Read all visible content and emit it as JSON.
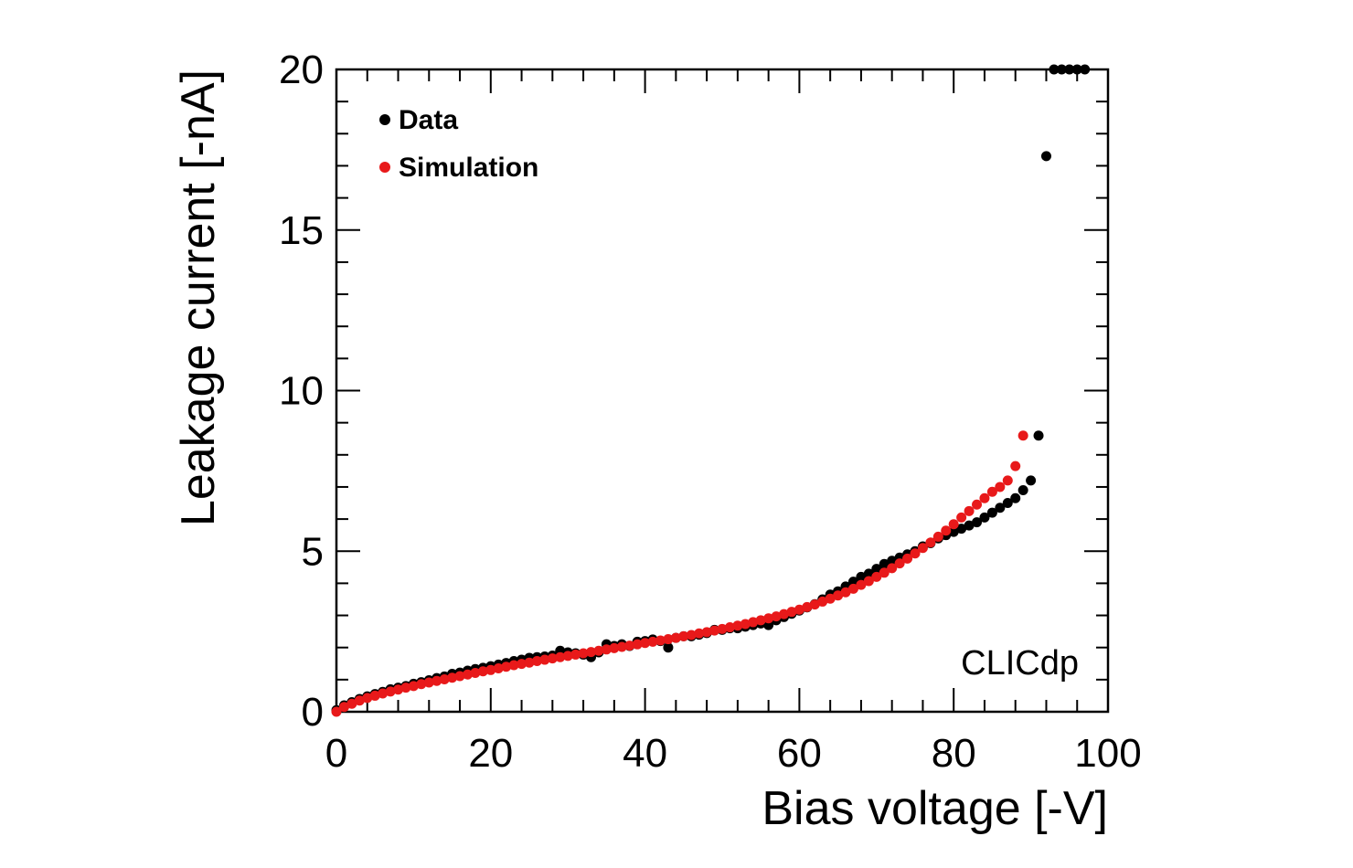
{
  "chart_data": {
    "type": "scatter",
    "title": "",
    "xlabel": "Bias voltage [-V]",
    "ylabel": "Leakage current [-nA]",
    "xlim": [
      0,
      100
    ],
    "ylim": [
      0,
      20
    ],
    "x_ticks": [
      0,
      20,
      40,
      60,
      80,
      100
    ],
    "y_ticks": [
      0,
      5,
      10,
      15,
      20
    ],
    "grid": false,
    "legend_position": "top-left",
    "annotation": "CLICdp",
    "series": [
      {
        "name": "Data",
        "color": "#000000",
        "x": [
          0,
          1,
          2,
          3,
          4,
          5,
          6,
          7,
          8,
          9,
          10,
          11,
          12,
          13,
          14,
          15,
          16,
          17,
          18,
          19,
          20,
          21,
          22,
          23,
          24,
          25,
          26,
          27,
          28,
          29,
          30,
          31,
          32,
          33,
          34,
          35,
          36,
          37,
          38,
          39,
          40,
          41,
          42,
          43,
          44,
          45,
          46,
          47,
          48,
          49,
          50,
          51,
          52,
          53,
          54,
          55,
          56,
          57,
          58,
          59,
          60,
          61,
          62,
          63,
          64,
          65,
          66,
          67,
          68,
          69,
          70,
          71,
          72,
          73,
          74,
          75,
          76,
          77,
          78,
          79,
          80,
          81,
          82,
          83,
          84,
          85,
          86,
          87,
          88,
          89,
          90,
          91,
          92,
          93,
          94,
          95,
          96,
          97
        ],
        "values": [
          0.05,
          0.2,
          0.3,
          0.4,
          0.48,
          0.55,
          0.62,
          0.7,
          0.75,
          0.8,
          0.87,
          0.92,
          0.98,
          1.05,
          1.1,
          1.18,
          1.22,
          1.28,
          1.33,
          1.37,
          1.42,
          1.47,
          1.52,
          1.58,
          1.62,
          1.68,
          1.7,
          1.72,
          1.75,
          1.9,
          1.85,
          1.82,
          1.78,
          1.7,
          1.85,
          2.1,
          2.05,
          2.1,
          2.05,
          2.18,
          2.2,
          2.25,
          2.2,
          2.0,
          2.3,
          2.35,
          2.35,
          2.4,
          2.45,
          2.55,
          2.55,
          2.6,
          2.6,
          2.65,
          2.7,
          2.75,
          2.7,
          2.85,
          2.95,
          3.05,
          3.15,
          3.25,
          3.35,
          3.5,
          3.65,
          3.75,
          3.9,
          4.05,
          4.2,
          4.3,
          4.45,
          4.6,
          4.7,
          4.8,
          4.9,
          5.0,
          5.15,
          5.25,
          5.4,
          5.5,
          5.6,
          5.7,
          5.8,
          5.9,
          6.05,
          6.2,
          6.35,
          6.5,
          6.65,
          6.9,
          7.2,
          8.6,
          17.3,
          20,
          20,
          20,
          20,
          20
        ]
      },
      {
        "name": "Simulation",
        "color": "#e8191a",
        "x": [
          0,
          1,
          2,
          3,
          4,
          5,
          6,
          7,
          8,
          9,
          10,
          11,
          12,
          13,
          14,
          15,
          16,
          17,
          18,
          19,
          20,
          21,
          22,
          23,
          24,
          25,
          26,
          27,
          28,
          29,
          30,
          31,
          32,
          33,
          34,
          35,
          36,
          37,
          38,
          39,
          40,
          41,
          42,
          43,
          44,
          45,
          46,
          47,
          48,
          49,
          50,
          51,
          52,
          53,
          54,
          55,
          56,
          57,
          58,
          59,
          60,
          61,
          62,
          63,
          64,
          65,
          66,
          67,
          68,
          69,
          70,
          71,
          72,
          73,
          74,
          75,
          76,
          77,
          78,
          79,
          80,
          81,
          82,
          83,
          84,
          85,
          86,
          87,
          88,
          89
        ],
        "values": [
          0.0,
          0.15,
          0.25,
          0.35,
          0.43,
          0.5,
          0.57,
          0.63,
          0.69,
          0.75,
          0.8,
          0.86,
          0.91,
          0.96,
          1.01,
          1.06,
          1.11,
          1.16,
          1.21,
          1.26,
          1.3,
          1.35,
          1.4,
          1.45,
          1.49,
          1.53,
          1.58,
          1.62,
          1.66,
          1.7,
          1.74,
          1.78,
          1.82,
          1.86,
          1.9,
          1.94,
          1.98,
          2.02,
          2.06,
          2.1,
          2.14,
          2.18,
          2.22,
          2.26,
          2.3,
          2.35,
          2.39,
          2.44,
          2.48,
          2.53,
          2.58,
          2.63,
          2.68,
          2.73,
          2.79,
          2.85,
          2.91,
          2.97,
          3.04,
          3.11,
          3.18,
          3.26,
          3.34,
          3.43,
          3.52,
          3.62,
          3.72,
          3.83,
          3.95,
          4.07,
          4.2,
          4.33,
          4.47,
          4.62,
          4.77,
          4.93,
          5.1,
          5.27,
          5.45,
          5.64,
          5.84,
          6.05,
          6.25,
          6.45,
          6.65,
          6.85,
          7.0,
          7.2,
          7.65,
          8.6
        ]
      }
    ]
  }
}
